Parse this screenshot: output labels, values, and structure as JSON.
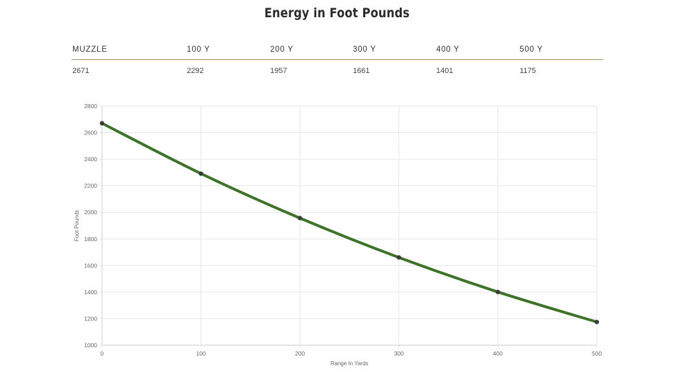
{
  "title": "Energy in Foot Pounds",
  "table": {
    "headers": [
      "MUZZLE",
      "100 Y",
      "200 Y",
      "300 Y",
      "400 Y",
      "500 Y"
    ],
    "values": [
      "2671",
      "2292",
      "1957",
      "1661",
      "1401",
      "1175"
    ]
  },
  "chart_data": {
    "type": "line",
    "x": [
      0,
      100,
      200,
      300,
      400,
      500
    ],
    "series": [
      {
        "name": "Energy",
        "values": [
          2671,
          2292,
          1957,
          1661,
          1401,
          1175
        ]
      }
    ],
    "xlabel": "Range In Yards",
    "ylabel": "Foot Pounds",
    "xlim": [
      0,
      500
    ],
    "ylim": [
      1000,
      2800
    ],
    "xticks": [
      0,
      100,
      200,
      300,
      400,
      500
    ],
    "yticks": [
      1000,
      1200,
      1400,
      1600,
      1800,
      2000,
      2200,
      2400,
      2600,
      2800
    ],
    "grid": true,
    "line_color": "#3d7327",
    "point_color": "#3b3b3b",
    "grid_color": "#e6e6e6"
  }
}
